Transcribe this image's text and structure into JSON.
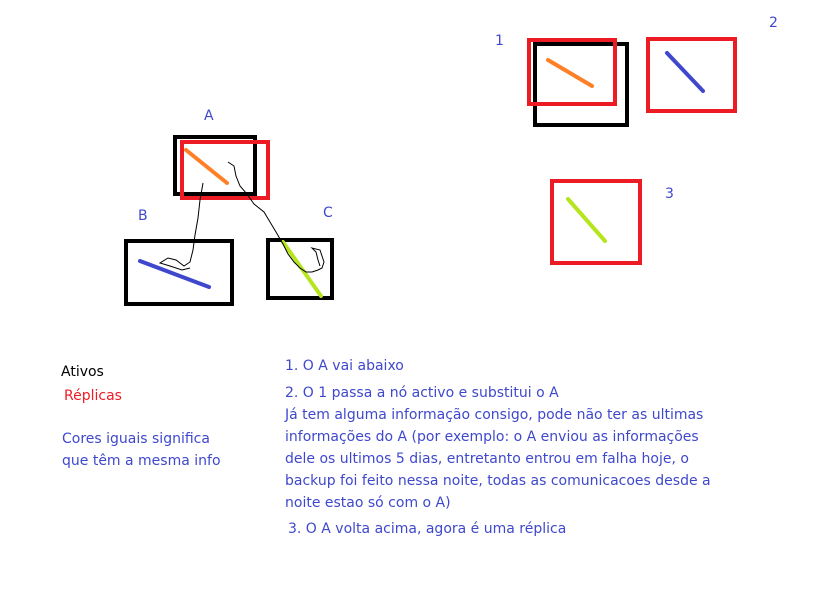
{
  "colors": {
    "black": "#000000",
    "red": "#ed1c24",
    "blue": "#3f48cc",
    "orange": "#ff7f27",
    "green": "#b5e61d"
  },
  "labels": {
    "A": "A",
    "B": "B",
    "C": "C",
    "n1": "1",
    "n2": "2",
    "n3": "3"
  },
  "legend": {
    "ativos": "Ativos",
    "replicas": "Réplicas",
    "note_line1": "Cores iguais significa",
    "note_line2": "que têm a mesma info"
  },
  "steps": {
    "s1": "1. O A vai abaixo",
    "s2_l1": "2. O 1 passa a nó activo e substitui o A",
    "s2_l2": "Já tem alguma informação consigo, pode não ter as ultimas",
    "s2_l3": "informações do A (por exemplo: o A enviou as informações",
    "s2_l4": "dele os ultimos 5 dias, entretanto entrou em falha hoje, o",
    "s2_l5": "backup foi feito nessa noite, todas as comunicacoes desde a",
    "s2_l6": "noite estao só com o A)",
    "s3": "3. O A volta acima,  agora é uma réplica"
  }
}
